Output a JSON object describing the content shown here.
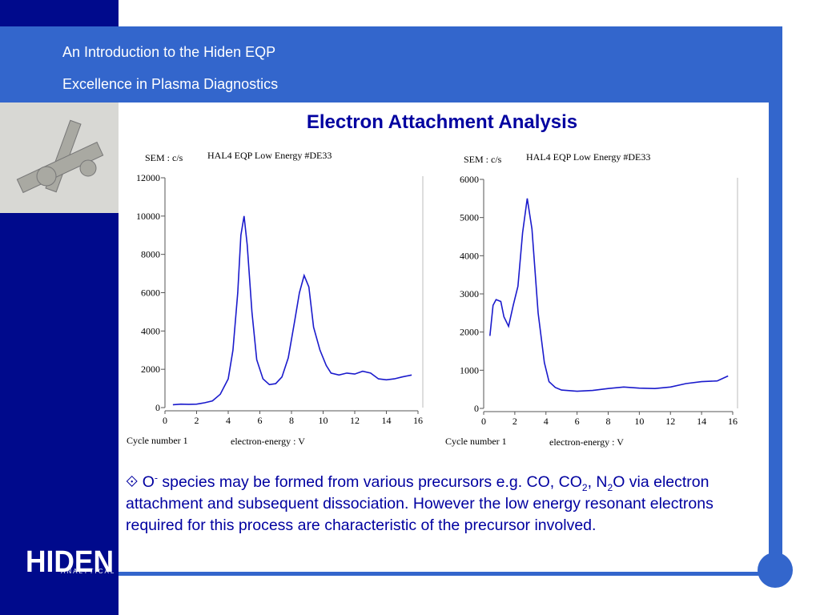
{
  "header": {
    "line1": "An Introduction to the Hiden EQP",
    "line2": "Excellence in Plasma Diagnostics"
  },
  "title": "Electron Attachment Analysis",
  "logo": {
    "name": "HIDEN",
    "sub": "ANALYTICAL"
  },
  "body": [
    "⟐ O",
    "-",
    " species may be formed from various precursors e.g. CO, CO",
    "2",
    ", N",
    "2",
    "O via electron attachment and subsequent dissociation. However the low energy resonant electrons required for this process are characteristic of the precursor involved."
  ],
  "chart_data": [
    {
      "type": "line",
      "ylabel": "SEM : c/s",
      "title": "HAL4 EQP Low Energy  #DE33",
      "note": "Cycle number 1",
      "xlabel": "electron-energy : V",
      "color": "#1a1acc",
      "x": [
        0.5,
        1,
        1.5,
        2,
        2.5,
        3,
        3.5,
        4,
        4.3,
        4.6,
        4.8,
        5,
        5.2,
        5.5,
        5.8,
        6.2,
        6.6,
        7,
        7.4,
        7.8,
        8.2,
        8.5,
        8.8,
        9.1,
        9.4,
        9.8,
        10.2,
        10.5,
        11,
        11.5,
        12,
        12.5,
        13,
        13.5,
        14,
        14.5,
        15,
        15.6
      ],
      "values": [
        150,
        180,
        170,
        180,
        250,
        350,
        700,
        1500,
        3000,
        6000,
        9000,
        10000,
        8500,
        5000,
        2500,
        1500,
        1200,
        1250,
        1600,
        2600,
        4500,
        6000,
        6900,
        6300,
        4200,
        3000,
        2200,
        1800,
        1700,
        1800,
        1750,
        1900,
        1800,
        1500,
        1450,
        1500,
        1600,
        1700
      ],
      "xlim": [
        0,
        16
      ],
      "xticks": [
        0,
        2,
        4,
        6,
        8,
        10,
        12,
        14,
        16
      ],
      "ylim": [
        0,
        12000
      ],
      "yticks": [
        0,
        2000,
        4000,
        6000,
        8000,
        10000,
        12000
      ]
    },
    {
      "type": "line",
      "ylabel": "SEM : c/s",
      "title": "HAL4 EQP Low Energy  #DE33",
      "note": "Cycle number 1",
      "xlabel": "electron-energy : V",
      "color": "#1a1acc",
      "x": [
        0.4,
        0.6,
        0.8,
        1.1,
        1.3,
        1.6,
        1.9,
        2.2,
        2.5,
        2.8,
        3.1,
        3.5,
        3.9,
        4.2,
        4.6,
        5,
        6,
        7,
        8,
        9,
        10,
        11,
        12,
        13,
        14,
        15,
        15.7
      ],
      "values": [
        1900,
        2700,
        2850,
        2800,
        2400,
        2150,
        2700,
        3200,
        4600,
        5500,
        4700,
        2500,
        1200,
        700,
        550,
        480,
        450,
        470,
        520,
        560,
        530,
        520,
        560,
        650,
        700,
        720,
        850
      ],
      "xlim": [
        0,
        16
      ],
      "xticks": [
        0,
        2,
        4,
        6,
        8,
        10,
        12,
        14,
        16
      ],
      "ylim": [
        0,
        6000
      ],
      "yticks": [
        0,
        1000,
        2000,
        3000,
        4000,
        5000,
        6000
      ]
    }
  ]
}
